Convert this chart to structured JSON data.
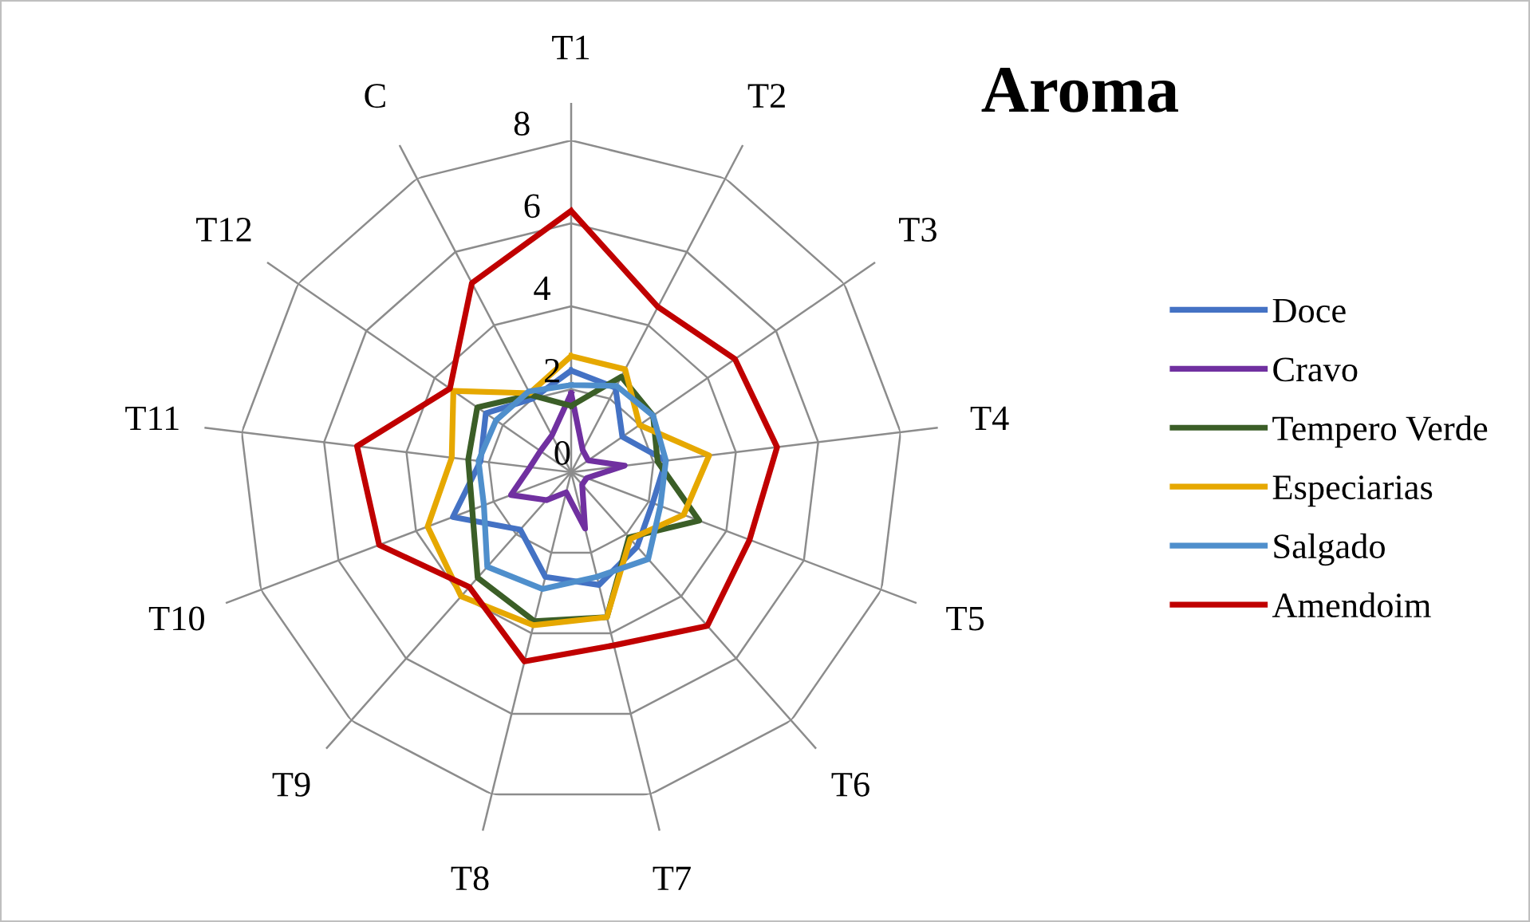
{
  "chart_data": {
    "type": "radar",
    "title": "Aroma",
    "categories": [
      "T1",
      "T2",
      "T3",
      "T4",
      "T5",
      "T6",
      "T7",
      "T8",
      "T9",
      "T10",
      "T11",
      "T12",
      "C"
    ],
    "ylim": [
      0,
      8
    ],
    "yticks": [
      0,
      2,
      4,
      6,
      8
    ],
    "grid": true,
    "legend": "right",
    "marker": "none",
    "line_style": "solid",
    "series": [
      {
        "name": "Doce",
        "color": "#4472c4",
        "values": [
          2.45,
          2.3,
          1.5,
          2.3,
          2.1,
          2.4,
          2.8,
          2.6,
          1.85,
          3.05,
          2.2,
          2.5,
          2.0
        ]
      },
      {
        "name": "Cravo",
        "color": "#7030a0",
        "values": [
          1.9,
          0.6,
          0.5,
          1.3,
          0.4,
          0.4,
          1.4,
          0.5,
          0.9,
          1.55,
          1.0,
          0.9,
          1.0
        ]
      },
      {
        "name": "Tempero Verde",
        "color": "#3b5e27",
        "values": [
          1.6,
          2.6,
          2.4,
          2.1,
          3.3,
          2.1,
          3.6,
          3.7,
          3.4,
          2.55,
          2.5,
          2.75,
          2.1
        ]
      },
      {
        "name": "Especiarias",
        "color": "#e6a800",
        "values": [
          2.8,
          2.8,
          2.0,
          3.35,
          2.9,
          2.15,
          3.6,
          3.8,
          4.0,
          3.7,
          2.9,
          3.45,
          2.15
        ]
      },
      {
        "name": "Salgado",
        "color": "#4f8fcc",
        "values": [
          2.1,
          2.35,
          2.4,
          2.3,
          2.3,
          2.8,
          2.6,
          2.9,
          3.05,
          2.25,
          2.25,
          2.2,
          2.2
        ]
      },
      {
        "name": "Amendoim",
        "color": "#c00000",
        "values": [
          6.3,
          4.5,
          4.8,
          5.0,
          4.6,
          4.95,
          4.3,
          4.7,
          3.7,
          4.95,
          5.2,
          3.55,
          5.15
        ]
      }
    ]
  }
}
